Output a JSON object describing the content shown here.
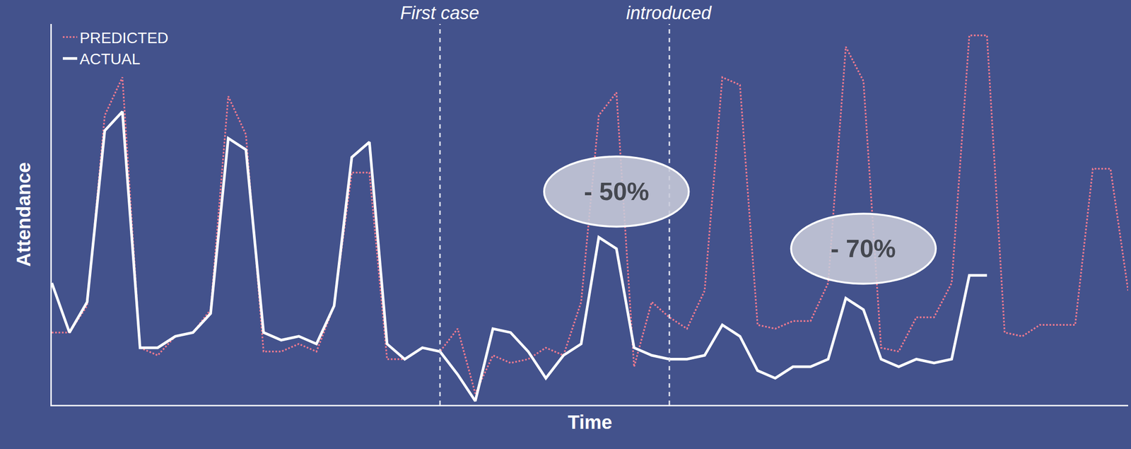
{
  "chart_data": {
    "type": "line",
    "x_label": "Time",
    "y_label": "Attendance",
    "x": [
      0,
      1,
      2,
      3,
      4,
      5,
      6,
      7,
      8,
      9,
      10,
      11,
      12,
      13,
      14,
      15,
      16,
      17,
      18,
      19,
      20,
      21,
      22,
      23,
      24,
      25,
      26,
      27,
      28,
      29,
      30,
      31,
      32,
      33,
      34,
      35,
      36,
      37,
      38,
      39,
      40,
      41,
      42,
      43,
      44,
      45,
      46,
      47,
      48,
      49,
      50,
      51,
      52,
      53,
      54,
      55,
      56,
      57,
      58,
      59,
      60,
      61
    ],
    "series": [
      {
        "name": "PREDICTED",
        "color": "#f07a8f",
        "line_style": "dotted",
        "values": [
          19,
          19,
          26,
          76,
          86,
          15,
          13,
          18,
          19,
          25,
          81,
          71,
          14,
          14,
          16,
          14,
          26,
          61,
          61,
          12,
          12,
          15,
          14,
          20,
          3,
          13,
          11,
          12,
          15,
          13,
          27,
          76,
          82,
          10,
          27,
          23,
          20,
          30,
          86,
          84,
          21,
          20,
          22,
          22,
          32,
          94,
          85,
          15,
          14,
          23,
          23,
          32,
          97,
          97,
          19,
          18,
          21,
          21,
          21,
          62,
          62,
          30
        ]
      },
      {
        "name": "ACTUAL",
        "color": "#ffffff",
        "line_style": "solid",
        "values": [
          32,
          19,
          27,
          72,
          77,
          15,
          15,
          18,
          19,
          24,
          70,
          67,
          19,
          17,
          18,
          16,
          26,
          65,
          69,
          16,
          12,
          15,
          14,
          8,
          1,
          20,
          19,
          14,
          7,
          13,
          16,
          44,
          41,
          15,
          13,
          12,
          12,
          13,
          21,
          18,
          9,
          7,
          10,
          10,
          12,
          28,
          25,
          12,
          10,
          12,
          11,
          12,
          34,
          34,
          null,
          null,
          null,
          null,
          null,
          null,
          null,
          null
        ]
      }
    ],
    "xlim": [
      0,
      61
    ],
    "ylim": [
      0,
      100
    ],
    "xticks": [],
    "yticks": [],
    "tick_labels": false,
    "grid": false,
    "legend": "top-left",
    "vlines": [
      {
        "x": 22,
        "label": "First case"
      },
      {
        "x": 35,
        "label": "introduced"
      }
    ],
    "annotations": [
      {
        "text": "- 50%",
        "x": 32,
        "y": 56
      },
      {
        "text": "- 70%",
        "x": 46,
        "y": 41
      }
    ]
  }
}
